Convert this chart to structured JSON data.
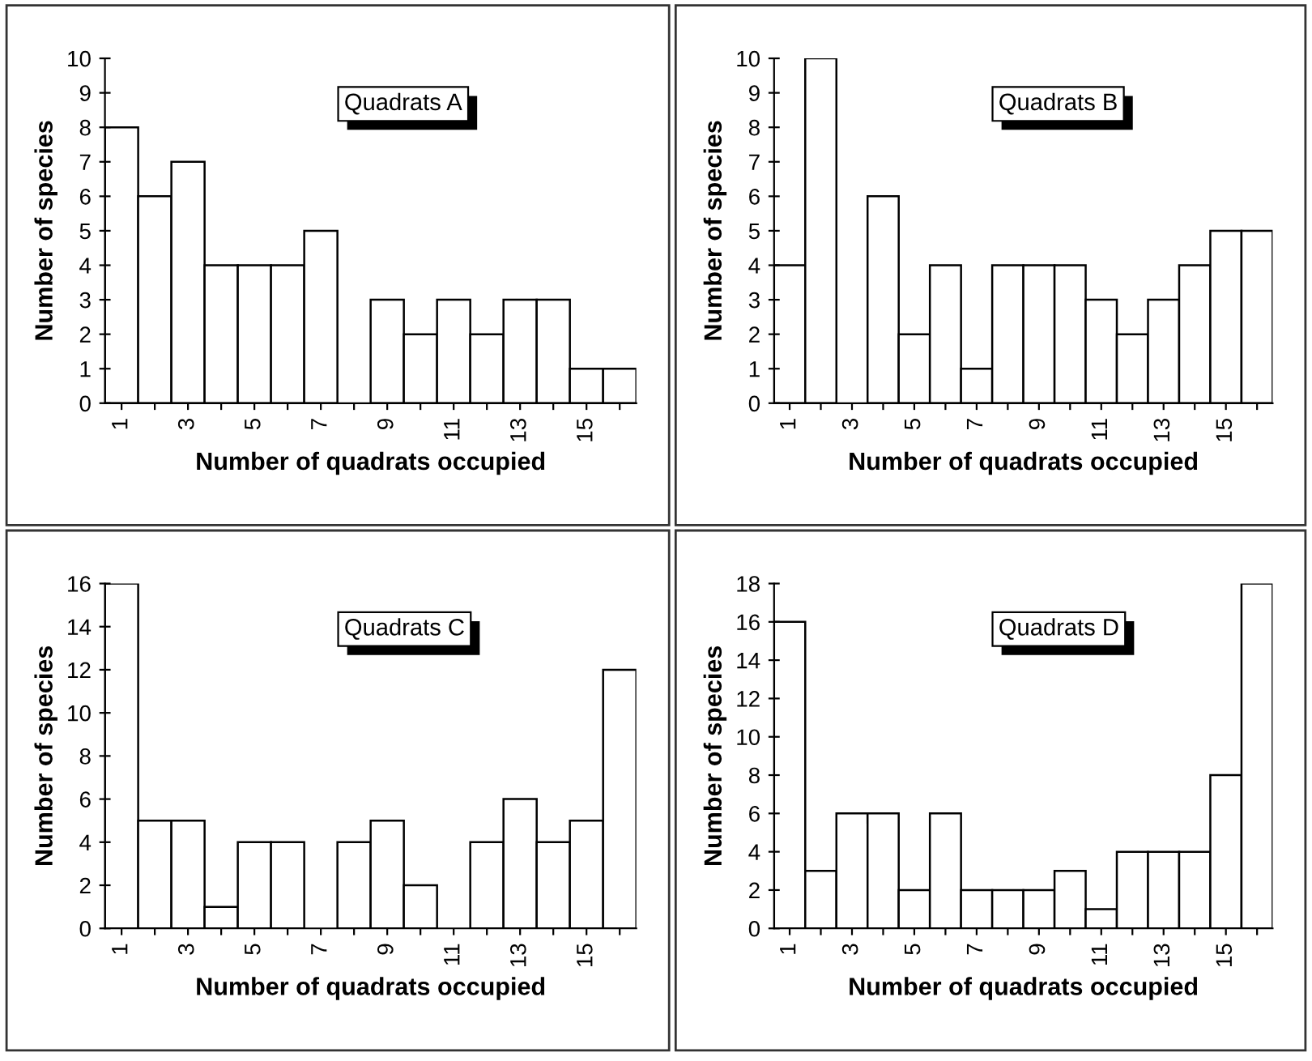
{
  "chart_data": [
    {
      "type": "bar",
      "xlabel": "Number of quadrats occupied",
      "ylabel": "Number of species",
      "annotations": [
        "Quadrats A"
      ],
      "categories": [
        "1",
        null,
        "3",
        null,
        "5",
        null,
        "7",
        null,
        "9",
        null,
        "11",
        null,
        "13",
        null,
        "15",
        null
      ],
      "values": [
        8,
        6,
        7,
        4,
        4,
        4,
        5,
        0,
        3,
        2,
        3,
        2,
        3,
        3,
        1,
        1
      ],
      "color": "#ffffff",
      "ylim": [
        0,
        10
      ],
      "yticks": [
        0,
        1,
        2,
        3,
        4,
        5,
        6,
        7,
        8,
        9,
        10
      ],
      "grid": false,
      "legend": false
    },
    {
      "type": "bar",
      "xlabel": "Number of quadrats occupied",
      "ylabel": "Number of species",
      "annotations": [
        "Quadrats B"
      ],
      "categories": [
        "1",
        null,
        "3",
        null,
        "5",
        null,
        "7",
        null,
        "9",
        null,
        "11",
        null,
        "13",
        null,
        "15",
        null
      ],
      "values": [
        4,
        10,
        0,
        6,
        2,
        4,
        1,
        4,
        4,
        4,
        3,
        2,
        3,
        4,
        5,
        5
      ],
      "color": "#ffffff",
      "ylim": [
        0,
        10
      ],
      "yticks": [
        0,
        1,
        2,
        3,
        4,
        5,
        6,
        7,
        8,
        9,
        10
      ],
      "grid": false,
      "legend": false
    },
    {
      "type": "bar",
      "xlabel": "Number of quadrats occupied",
      "ylabel": "Number of species",
      "annotations": [
        "Quadrats C"
      ],
      "categories": [
        "1",
        null,
        "3",
        null,
        "5",
        null,
        "7",
        null,
        "9",
        null,
        "11",
        null,
        "13",
        null,
        "15",
        null
      ],
      "values": [
        16,
        5,
        5,
        1,
        4,
        4,
        0,
        4,
        5,
        2,
        0,
        4,
        6,
        4,
        5,
        12
      ],
      "color": "#ffffff",
      "ylim": [
        0,
        16
      ],
      "yticks": [
        0,
        2,
        4,
        6,
        8,
        10,
        12,
        14,
        16
      ],
      "grid": false,
      "legend": false
    },
    {
      "type": "bar",
      "xlabel": "Number of quadrats occupied",
      "ylabel": "Number of species",
      "annotations": [
        "Quadrats D"
      ],
      "categories": [
        "1",
        null,
        "3",
        null,
        "5",
        null,
        "7",
        null,
        "9",
        null,
        "11",
        null,
        "13",
        null,
        "15",
        null
      ],
      "values": [
        16,
        3,
        6,
        6,
        2,
        6,
        2,
        2,
        2,
        3,
        1,
        4,
        4,
        4,
        8,
        18
      ],
      "color": "#ffffff",
      "ylim": [
        0,
        18
      ],
      "yticks": [
        0,
        2,
        4,
        6,
        8,
        10,
        12,
        14,
        16,
        18
      ],
      "grid": false,
      "legend": false
    }
  ]
}
